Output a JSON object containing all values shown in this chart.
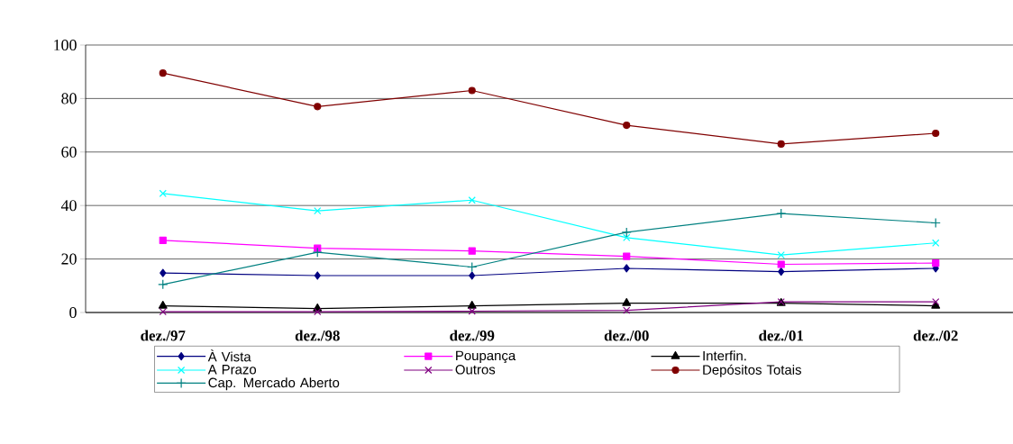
{
  "chart_data": {
    "type": "line",
    "categories": [
      "dez./97",
      "dez./98",
      "dez./99",
      "dez./00",
      "dez./01",
      "dez./02"
    ],
    "series": [
      {
        "name": "À Vista",
        "color": "#000080",
        "marker": "diamond",
        "values": [
          14.8,
          13.8,
          13.8,
          16.5,
          15.3,
          16.5
        ]
      },
      {
        "name": "Poupança",
        "color": "#ff00ff",
        "marker": "square",
        "values": [
          27,
          24,
          23,
          21,
          18,
          18.5
        ]
      },
      {
        "name": "Interfin.",
        "color": "#000000",
        "marker": "triangle",
        "values": [
          2.5,
          1.5,
          2.5,
          3.5,
          3.5,
          2.5
        ]
      },
      {
        "name": "A Prazo",
        "color": "#00ffff",
        "marker": "cross",
        "values": [
          44.5,
          38,
          42,
          28,
          21.5,
          26
        ]
      },
      {
        "name": "Outros",
        "color": "#800080",
        "marker": "cross",
        "values": [
          0.3,
          0.3,
          0.5,
          0.8,
          4,
          4
        ]
      },
      {
        "name": "Depósitos Totais",
        "color": "#800000",
        "marker": "circle",
        "values": [
          89.5,
          77,
          83,
          70,
          63,
          67
        ]
      },
      {
        "name": "Cap. Mercado Aberto",
        "color": "#008080",
        "marker": "plus",
        "values": [
          10.5,
          22.5,
          17,
          30,
          37,
          33.5
        ]
      }
    ],
    "ylim": [
      0,
      100
    ],
    "yticks": [
      0,
      20,
      40,
      60,
      80,
      100
    ],
    "grid": "y",
    "legend": "bottom"
  }
}
